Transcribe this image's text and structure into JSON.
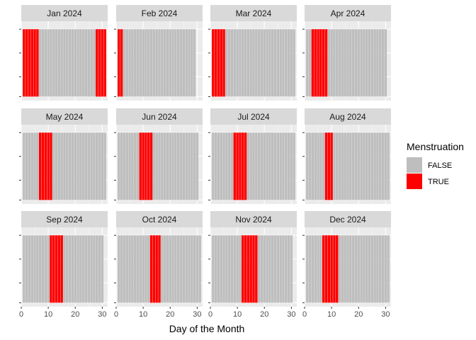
{
  "chart_data": {
    "type": "bar",
    "layout": "facet_wrap 4 columns x 3 rows",
    "xlabel": "Day of the Month",
    "ylabel": "",
    "xlim": [
      0,
      32
    ],
    "x_ticks": [
      0,
      10,
      20,
      30
    ],
    "y_ticks_labeled": false,
    "grid": true,
    "legend": {
      "title": "Menstruation",
      "position": "right",
      "entries": [
        {
          "label": "FALSE",
          "color": "#bebebe"
        },
        {
          "label": "TRUE",
          "color": "#ff0000"
        }
      ]
    },
    "colors": {
      "FALSE": "#bebebe",
      "TRUE": "#ff0000"
    },
    "panels": [
      {
        "title": "Jan 2024",
        "days": 31,
        "true_days": [
          1,
          2,
          3,
          4,
          5,
          6,
          28,
          29,
          30,
          31
        ]
      },
      {
        "title": "Feb 2024",
        "days": 29,
        "true_days": [
          1,
          2
        ]
      },
      {
        "title": "Mar 2024",
        "days": 31,
        "true_days": [
          1,
          2,
          3,
          4,
          5
        ]
      },
      {
        "title": "Apr 2024",
        "days": 30,
        "true_days": [
          3,
          4,
          5,
          6,
          7,
          8
        ]
      },
      {
        "title": "May 2024",
        "days": 31,
        "true_days": [
          7,
          8,
          9,
          10,
          11
        ]
      },
      {
        "title": "Jun 2024",
        "days": 30,
        "true_days": [
          9,
          10,
          11,
          12,
          13
        ]
      },
      {
        "title": "Jul 2024",
        "days": 31,
        "true_days": [
          9,
          10,
          11,
          12,
          13
        ]
      },
      {
        "title": "Aug 2024",
        "days": 31,
        "true_days": [
          8,
          9,
          10
        ]
      },
      {
        "title": "Sep 2024",
        "days": 30,
        "true_days": [
          11,
          12,
          13,
          14,
          15
        ]
      },
      {
        "title": "Oct 2024",
        "days": 31,
        "true_days": [
          13,
          14,
          15,
          16
        ]
      },
      {
        "title": "Nov 2024",
        "days": 30,
        "true_days": [
          12,
          13,
          14,
          15,
          16,
          17
        ]
      },
      {
        "title": "Dec 2024",
        "days": 31,
        "true_days": [
          7,
          8,
          9,
          10,
          11,
          12
        ]
      }
    ]
  }
}
